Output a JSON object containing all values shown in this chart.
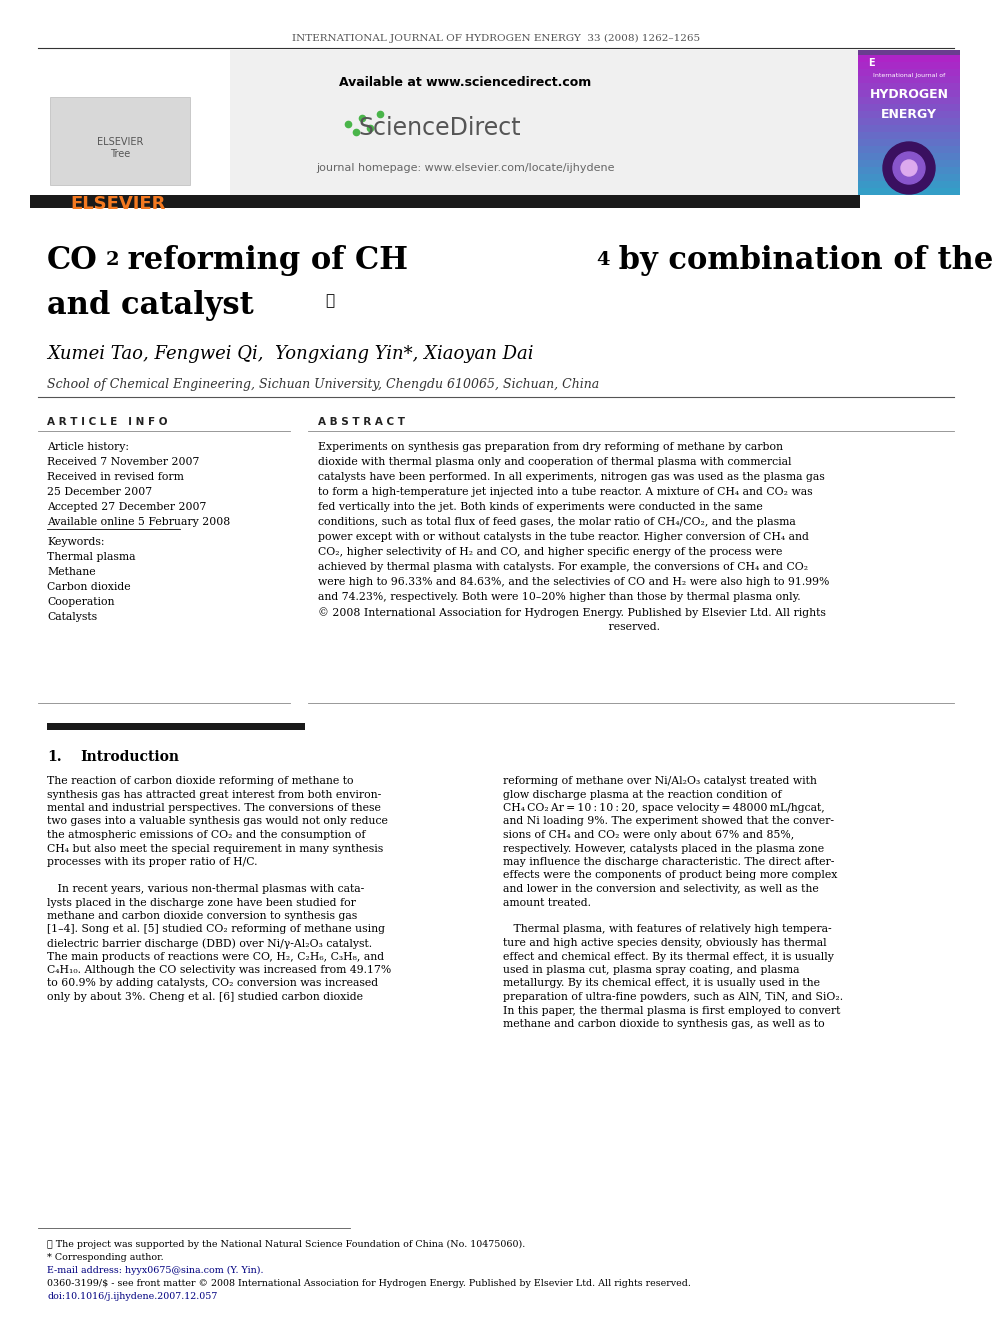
{
  "journal_header": "INTERNATIONAL JOURNAL OF HYDROGEN ENERGY  33 (2008) 1262–1265",
  "available_text": "Available at www.sciencedirect.com",
  "journal_homepage": "journal homepage: www.elsevier.com/locate/ijhydene",
  "authors": "Xumei Tao, Fengwei Qi,  Yongxiang Yin*, Xiaoyan Dai",
  "affiliation": "School of Chemical Engineering, Sichuan University, Chengdu 610065, Sichuan, China",
  "article_info_label": "ARTICLE INFO",
  "abstract_label": "ABSTRACT",
  "article_history_label": "Article history:",
  "received1": "Received 7 November 2007",
  "received2": "Received in revised form",
  "received2b": "25 December 2007",
  "accepted": "Accepted 27 December 2007",
  "available_online": "Available online 5 February 2008",
  "keywords_label": "Keywords:",
  "keywords": [
    "Thermal plasma",
    "Methane",
    "Carbon dioxide",
    "Cooperation",
    "Catalysts"
  ],
  "footnote1": "☆ The project was supported by the National Natural Science Foundation of China (No. 10475060).",
  "footnote2": "* Corresponding author.",
  "footnote3": "E-mail address: hyyx0675@sina.com (Y. Yin).",
  "footnote4": "0360-3199/$ - see front matter © 2008 International Association for Hydrogen Energy. Published by Elsevier Ltd. All rights reserved.",
  "footnote5": "doi:10.1016/j.ijhydene.2007.12.057",
  "bg_color": "#ffffff",
  "header_bg": "#f0f0f0",
  "black_bar_color": "#1a1a1a",
  "elsevier_orange": "#f47920",
  "text_color": "#000000",
  "link_color": "#000080"
}
